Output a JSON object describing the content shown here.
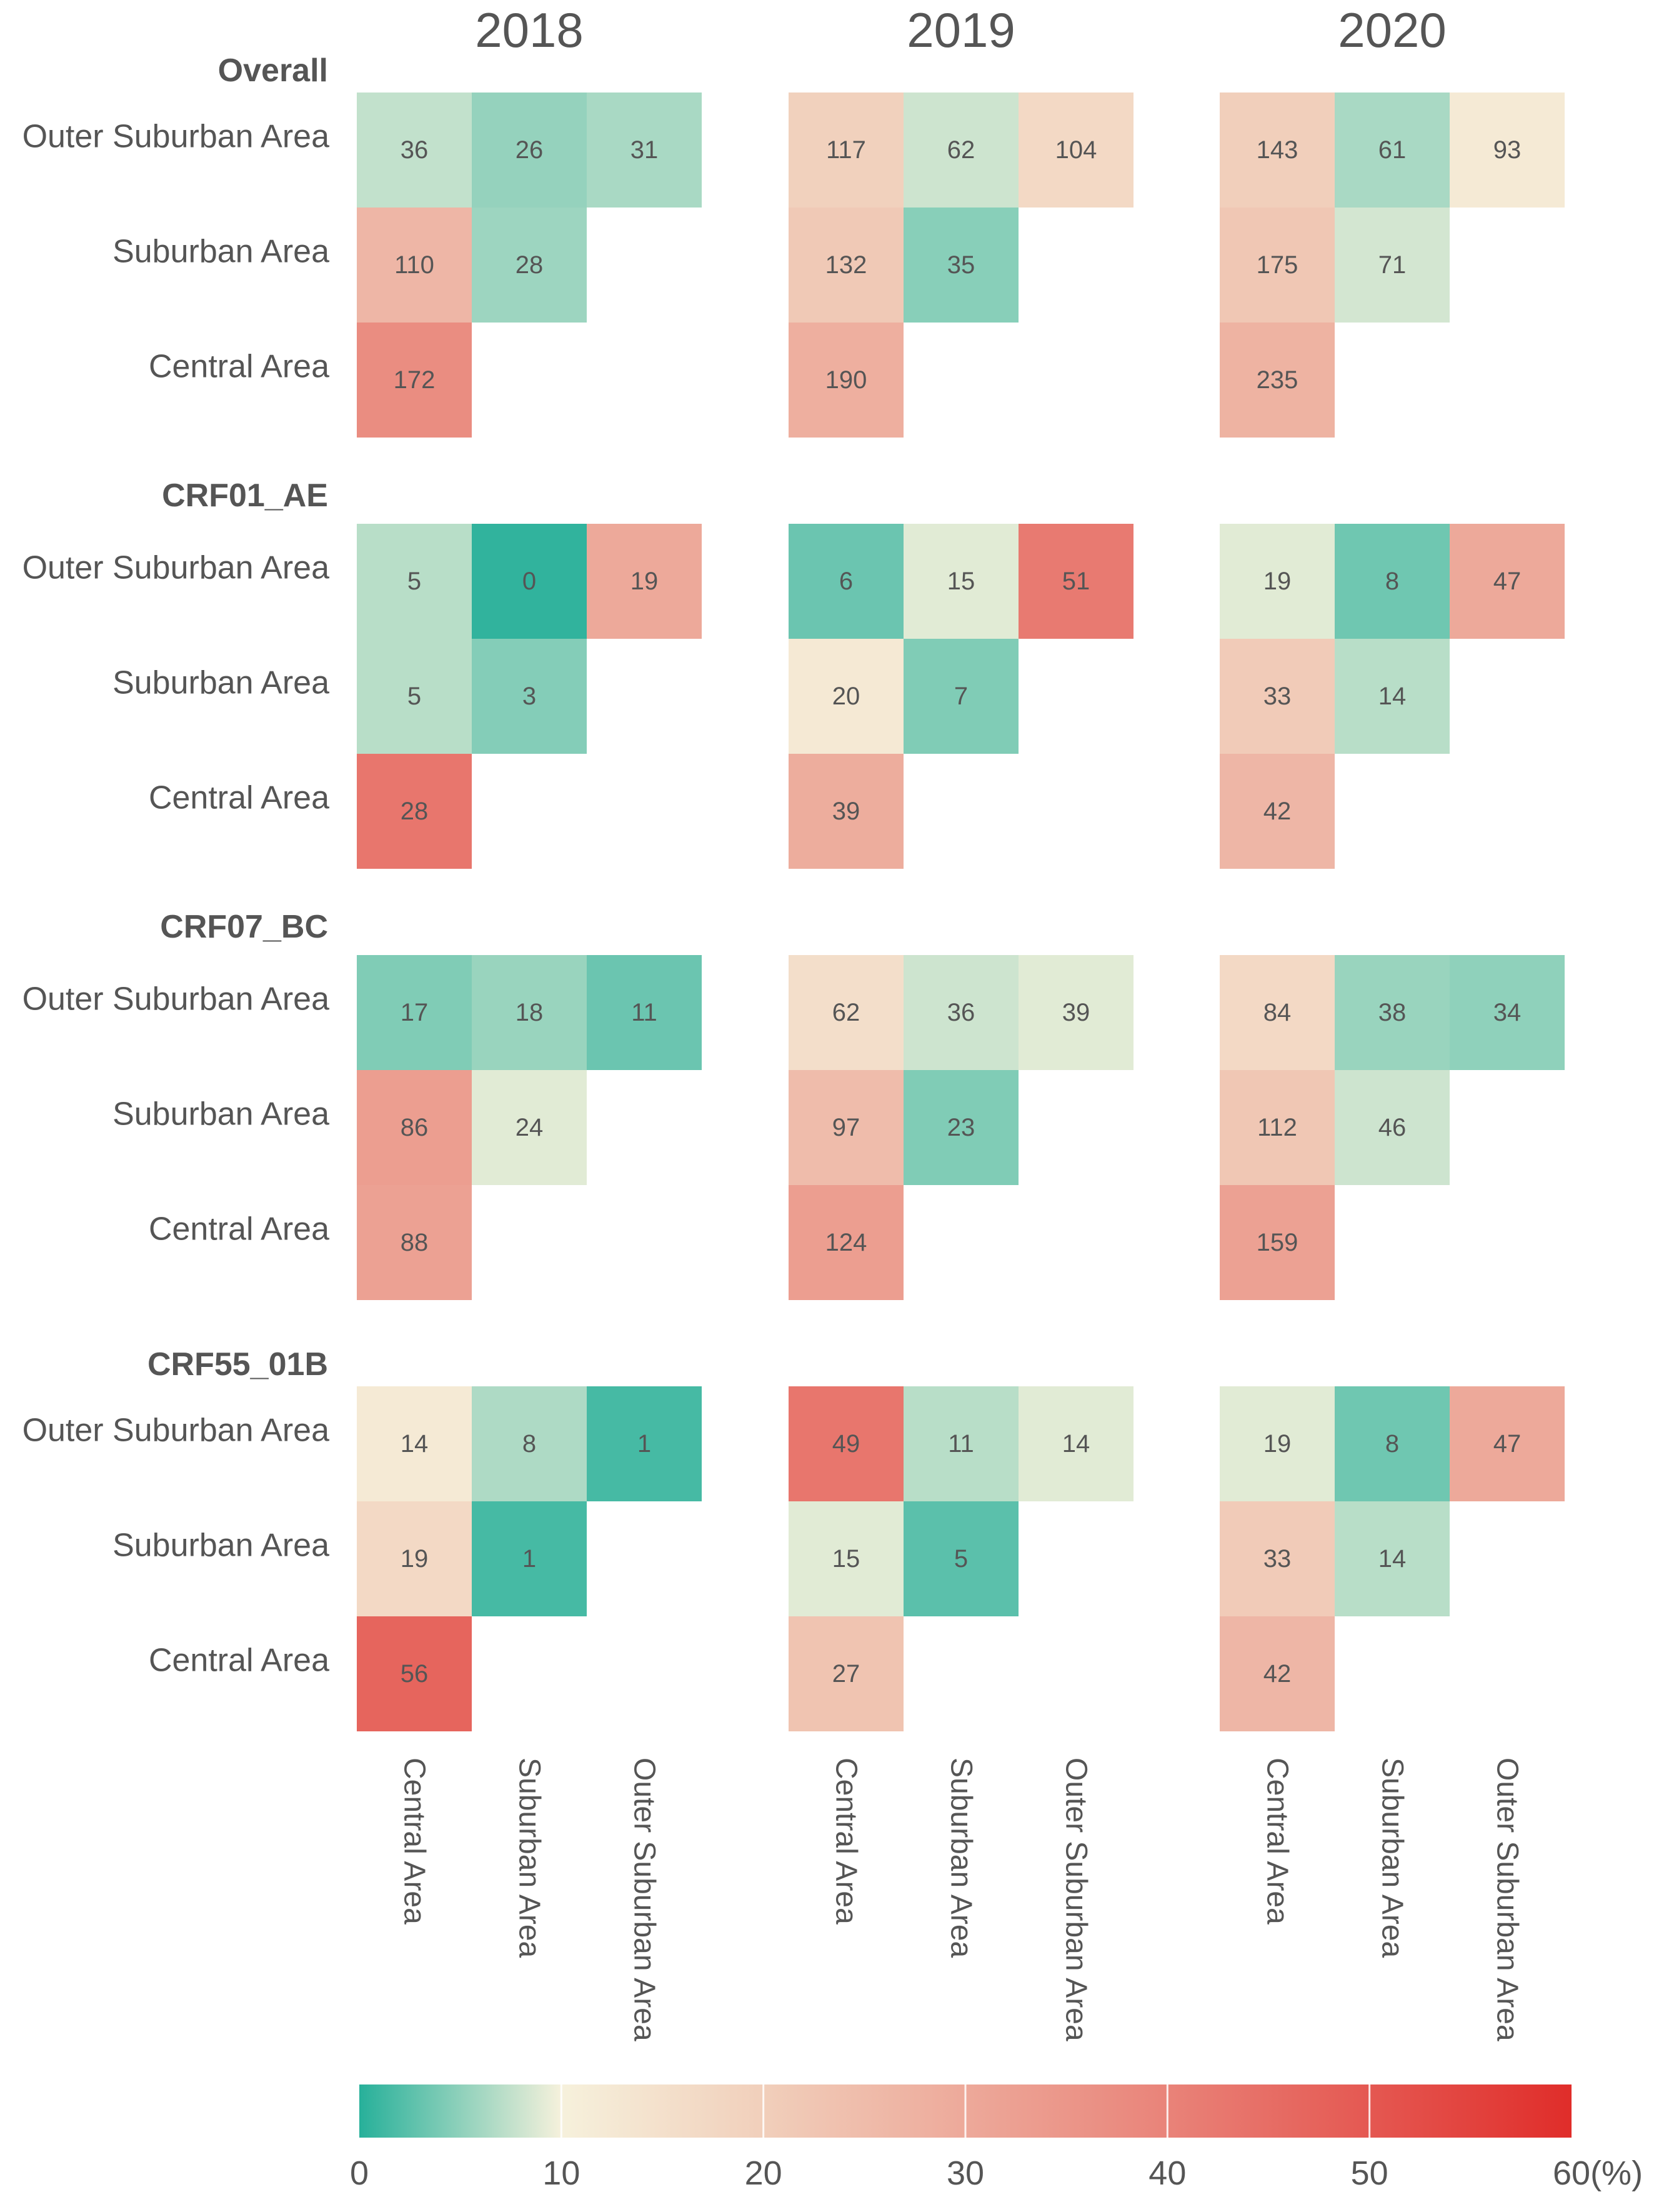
{
  "chart_data": {
    "type": "heatmap",
    "years": [
      "2018",
      "2019",
      "2020"
    ],
    "row_labels": [
      "Outer Suburban Area",
      "Suburban Area",
      "Central Area"
    ],
    "column_labels": [
      "Central Area",
      "Suburban Area",
      "Outer Suburban Area"
    ],
    "panels": [
      {
        "title": "Overall",
        "years": [
          {
            "year": "2018",
            "cells": [
              [
                36,
                26,
                31
              ],
              [
                110,
                28,
                null
              ],
              [
                172,
                null,
                null
              ]
            ],
            "percent": [
              [
                7.5,
                5.3,
                6.3
              ],
              [
                26.5,
                5.7,
                null
              ],
              [
                37.5,
                null,
                null
              ]
            ]
          },
          {
            "year": "2019",
            "cells": [
              [
                117,
                62,
                104
              ],
              [
                132,
                35,
                null
              ],
              [
                190,
                null,
                null
              ]
            ],
            "percent": [
              [
                19.5,
                8.0,
                17.0
              ],
              [
                21.5,
                4.7,
                null
              ],
              [
                28.5,
                null,
                null
              ]
            ]
          },
          {
            "year": "2020",
            "cells": [
              [
                143,
                61,
                93
              ],
              [
                175,
                71,
                null
              ],
              [
                235,
                null,
                null
              ]
            ],
            "percent": [
              [
                20.0,
                6.3,
                12.0
              ],
              [
                22.0,
                8.3,
                null
              ],
              [
                27.5,
                null,
                null
              ]
            ]
          }
        ]
      },
      {
        "title": "CRF01_AE",
        "years": [
          {
            "year": "2018",
            "cells": [
              [
                5,
                0,
                19
              ],
              [
                5,
                3,
                null
              ],
              [
                28,
                null,
                null
              ]
            ],
            "percent": [
              [
                7.0,
                0.5,
                30.0
              ],
              [
                7.0,
                4.5,
                null
              ],
              [
                43.0,
                null,
                null
              ]
            ]
          },
          {
            "year": "2019",
            "cells": [
              [
                6,
                15,
                51
              ],
              [
                20,
                7,
                null
              ],
              [
                39,
                null,
                null
              ]
            ],
            "percent": [
              [
                3.3,
                9.0,
                42.0
              ],
              [
                12.5,
                4.3,
                null
              ],
              [
                29.0,
                null,
                null
              ]
            ]
          },
          {
            "year": "2020",
            "cells": [
              [
                19,
                8,
                47
              ],
              [
                33,
                14,
                null
              ],
              [
                42,
                null,
                null
              ]
            ],
            "percent": [
              [
                9.0,
                3.5,
                30.0
              ],
              [
                21.0,
                7.0,
                null
              ],
              [
                26.5,
                null,
                null
              ]
            ]
          }
        ]
      },
      {
        "title": "CRF07_BC",
        "years": [
          {
            "year": "2018",
            "cells": [
              [
                17,
                18,
                11
              ],
              [
                86,
                24,
                null
              ],
              [
                88,
                null,
                null
              ]
            ],
            "percent": [
              [
                4.3,
                5.5,
                3.3
              ],
              [
                33.0,
                9.0,
                null
              ],
              [
                32.0,
                null,
                null
              ]
            ]
          },
          {
            "year": "2019",
            "cells": [
              [
                62,
                36,
                39
              ],
              [
                97,
                23,
                null
              ],
              [
                124,
                null,
                null
              ]
            ],
            "percent": [
              [
                15.5,
                8.0,
                9.0
              ],
              [
                25.0,
                4.3,
                null
              ],
              [
                33.0,
                null,
                null
              ]
            ]
          },
          {
            "year": "2020",
            "cells": [
              [
                84,
                38,
                34
              ],
              [
                112,
                46,
                null
              ],
              [
                159,
                null,
                null
              ]
            ],
            "percent": [
              [
                17.0,
                5.5,
                5.0
              ],
              [
                22.0,
                8.0,
                null
              ],
              [
                32.0,
                null,
                null
              ]
            ]
          }
        ]
      },
      {
        "title": "CRF55_01B",
        "years": [
          {
            "year": "2018",
            "cells": [
              [
                14,
                8,
                1
              ],
              [
                19,
                1,
                null
              ],
              [
                56,
                null,
                null
              ]
            ],
            "percent": [
              [
                12.0,
                6.5,
                1.5
              ],
              [
                17.0,
                1.5,
                null
              ],
              [
                47.0,
                null,
                null
              ]
            ]
          },
          {
            "year": "2019",
            "cells": [
              [
                49,
                11,
                14
              ],
              [
                15,
                5,
                null
              ],
              [
                27,
                null,
                null
              ]
            ],
            "percent": [
              [
                43.0,
                7.0,
                9.0
              ],
              [
                9.0,
                2.5,
                null
              ],
              [
                23.0,
                null,
                null
              ]
            ]
          },
          {
            "year": "2020",
            "cells": [
              [
                19,
                8,
                47
              ],
              [
                33,
                14,
                null
              ],
              [
                42,
                null,
                null
              ]
            ],
            "percent": [
              [
                9.0,
                3.5,
                30.0
              ],
              [
                21.0,
                7.0,
                null
              ],
              [
                26.5,
                null,
                null
              ]
            ]
          }
        ]
      }
    ],
    "colorbar": {
      "label": "(%)",
      "range": [
        0,
        60
      ],
      "ticks": [
        "0",
        "10",
        "20",
        "30",
        "40",
        "50",
        "60"
      ],
      "colors": [
        {
          "value": 0,
          "color": "#27b09a"
        },
        {
          "value": 10,
          "color": "#f6f1dc"
        },
        {
          "value": 20,
          "color": "#f1cfbb"
        },
        {
          "value": 40,
          "color": "#e98379"
        },
        {
          "value": 60,
          "color": "#e02d2a"
        }
      ]
    }
  }
}
